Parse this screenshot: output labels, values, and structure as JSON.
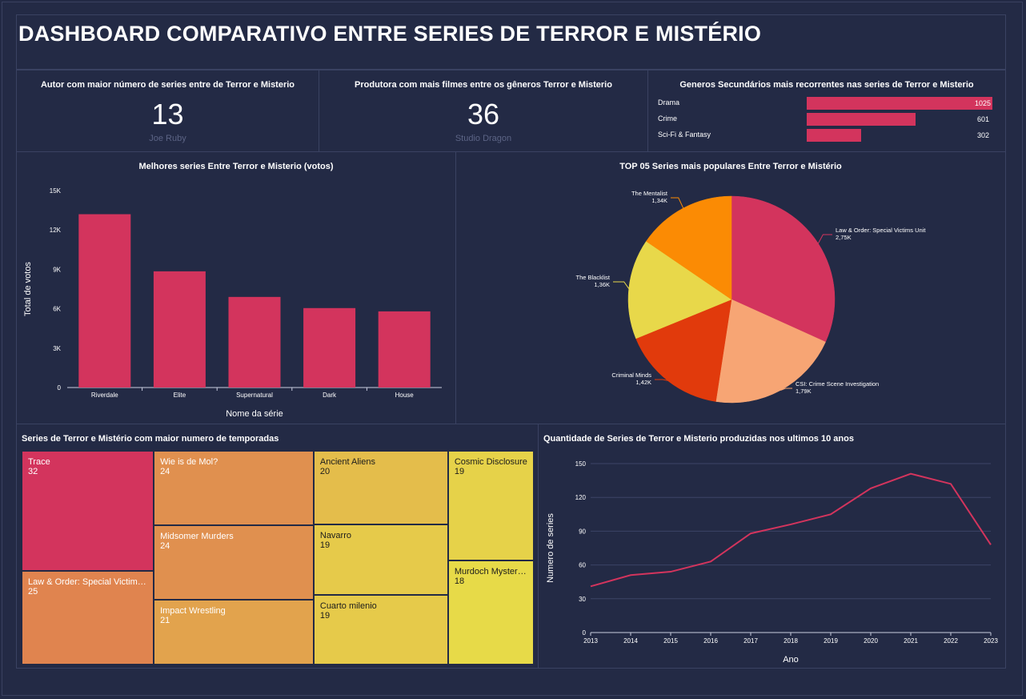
{
  "dashboard": {
    "title": "DASHBOARD COMPARATIVO ENTRE SERIES DE TERROR E MISTÉRIO"
  },
  "kpi_author": {
    "title": "Autor com maior número de series entre de Terror e Misterio",
    "value": "13",
    "subtitle": "Joe Ruby"
  },
  "kpi_producer": {
    "title": "Produtora com mais filmes entre os gêneros Terror e Misterio",
    "value": "36",
    "subtitle": "Studio Dragon"
  },
  "colors": {
    "accent": "#d3345d",
    "background": "#232a45",
    "panel_border": "#3a4262"
  },
  "chart_data": [
    {
      "id": "genres",
      "type": "bar",
      "orientation": "horizontal",
      "title": "Generos Secundários mais recorrentes nas series de Terror e Misterio",
      "categories": [
        "Drama",
        "Crime",
        "Sci-Fi & Fantasy"
      ],
      "values": [
        1025,
        601,
        302
      ],
      "value_labels": [
        "1025",
        "601",
        "302"
      ],
      "xlim": [
        0,
        1025
      ]
    },
    {
      "id": "votes",
      "type": "bar",
      "title": "Melhores series Entre Terror e Misterio (votos)",
      "xlabel": "Nome da série",
      "ylabel": "Total de votos",
      "categories": [
        "Riverdale",
        "Elite",
        "Supernatural",
        "Dark",
        "House"
      ],
      "values": [
        13200,
        8850,
        6900,
        6050,
        5800
      ],
      "ylim": [
        0,
        15000
      ],
      "yticks": [
        0,
        3000,
        6000,
        9000,
        12000,
        15000
      ],
      "ytick_labels": [
        "0",
        "3K",
        "6K",
        "9K",
        "12K",
        "15K"
      ]
    },
    {
      "id": "popular",
      "type": "pie",
      "title": "TOP 05 Series mais populares Entre Terror e Mistério",
      "labels": [
        "Law & Order: Special Victims Unit",
        "CSI: Crime Scene Investigation",
        "Criminal Minds",
        "The Blacklist",
        "The Mentalist"
      ],
      "values": [
        2.75,
        1.79,
        1.42,
        1.36,
        1.34
      ],
      "value_labels": [
        "2,75K",
        "1,79K",
        "1,42K",
        "1,36K",
        "1,34K"
      ],
      "colors": [
        "#d3345d",
        "#f7a574",
        "#e13a0c",
        "#e8d84a",
        "#fb8b04"
      ]
    },
    {
      "id": "seasons",
      "type": "treemap",
      "title": "Series de Terror e Mistério com maior numero de temporadas",
      "labels": [
        "Trace",
        "Law & Order: Special Victims...",
        "Wie is de Mol?",
        "Midsomer Murders",
        "Impact Wrestling",
        "Ancient Aliens",
        "Navarro",
        "Cuarto milenio",
        "Cosmic Disclosure",
        "Murdoch Mysteries"
      ],
      "values": [
        32,
        25,
        24,
        24,
        21,
        20,
        19,
        19,
        19,
        18
      ],
      "colors": [
        "#d3345d",
        "#e0844f",
        "#e0904f",
        "#e0904f",
        "#e2a34d",
        "#e4bd4b",
        "#e6ca4a",
        "#e6ca4a",
        "#e6d249",
        "#e7da48"
      ]
    },
    {
      "id": "per_year",
      "type": "line",
      "title": "Quantidade de Series de Terror e Misterio produzidas nos ultimos 10 anos",
      "xlabel": "Ano",
      "ylabel": "Numero de series",
      "x": [
        2013,
        2014,
        2015,
        2016,
        2017,
        2018,
        2019,
        2020,
        2021,
        2022,
        2023
      ],
      "y": [
        41,
        51,
        54,
        63,
        88,
        96,
        105,
        128,
        141,
        132,
        78
      ],
      "ylim": [
        0,
        150
      ],
      "yticks": [
        0,
        30,
        60,
        90,
        120,
        150
      ]
    }
  ]
}
